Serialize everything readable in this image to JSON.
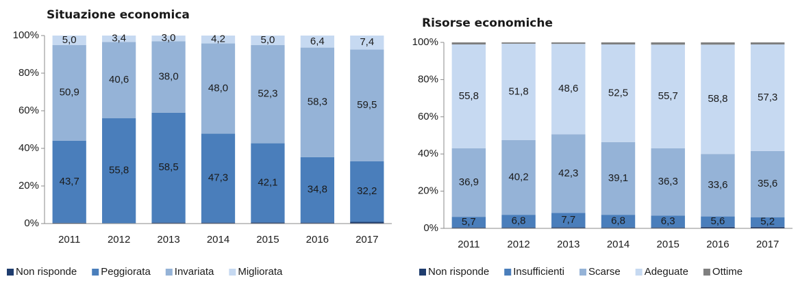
{
  "chart_data": [
    {
      "type": "stacked_bar",
      "title": "Situazione economica",
      "categories": [
        "2011",
        "2012",
        "2013",
        "2014",
        "2015",
        "2016",
        "2017"
      ],
      "series": [
        {
          "name": "Non risponde",
          "color": "#1f3d6e",
          "values": [
            0.4,
            0.2,
            0.5,
            0.5,
            0.6,
            0.5,
            0.9
          ]
        },
        {
          "name": "Peggiorata",
          "color": "#4a7ebb",
          "values": [
            43.7,
            55.8,
            58.5,
            47.3,
            42.1,
            34.8,
            32.2
          ],
          "value_labels": [
            "43,7",
            "55,8",
            "58,5",
            "47,3",
            "42,1",
            "34,8",
            "32,2"
          ]
        },
        {
          "name": "Invariata",
          "color": "#95b3d7",
          "values": [
            50.9,
            40.6,
            38.0,
            48.0,
            52.3,
            58.3,
            59.5
          ],
          "value_labels": [
            "50,9",
            "40,6",
            "38,0",
            "48,0",
            "52,3",
            "58,3",
            "59,5"
          ]
        },
        {
          "name": "Migliorata",
          "color": "#c6d9f1",
          "values": [
            5.0,
            3.4,
            3.0,
            4.2,
            5.0,
            6.4,
            7.4
          ],
          "value_labels": [
            "5,0",
            "3,4",
            "3,0",
            "4,2",
            "5,0",
            "6,4",
            "7,4"
          ]
        }
      ],
      "ylim": [
        0,
        100
      ],
      "yticks": [
        {
          "value": 0,
          "label": "0%"
        },
        {
          "value": 20,
          "label": "20%"
        },
        {
          "value": 40,
          "label": "40%"
        },
        {
          "value": 60,
          "label": "60%"
        },
        {
          "value": 80,
          "label": "80%"
        },
        {
          "value": 100,
          "label": "100%"
        }
      ],
      "legend": "bottom"
    },
    {
      "type": "stacked_bar",
      "title": "Risorse economiche",
      "categories": [
        "2011",
        "2012",
        "2013",
        "2014",
        "2015",
        "2016",
        "2017"
      ],
      "series": [
        {
          "name": "Non risponde",
          "color": "#1f3d6e",
          "values": [
            0.5,
            0.5,
            0.6,
            0.5,
            0.5,
            0.8,
            0.8
          ]
        },
        {
          "name": "Insufficienti",
          "color": "#4a7ebb",
          "values": [
            5.7,
            6.8,
            7.7,
            6.8,
            6.3,
            5.6,
            5.2
          ],
          "value_labels": [
            "5,7",
            "6,8",
            "7,7",
            "6,8",
            "6,3",
            "5,6",
            "5,2"
          ]
        },
        {
          "name": "Scarse",
          "color": "#95b3d7",
          "values": [
            36.9,
            40.2,
            42.3,
            39.1,
            36.3,
            33.6,
            35.6
          ],
          "value_labels": [
            "36,9",
            "40,2",
            "42,3",
            "39,1",
            "36,3",
            "33,6",
            "35,6"
          ]
        },
        {
          "name": "Adeguate",
          "color": "#c6d9f1",
          "values": [
            55.8,
            51.8,
            48.6,
            52.5,
            55.7,
            58.8,
            57.3
          ],
          "value_labels": [
            "55,8",
            "51,8",
            "48,6",
            "52,5",
            "55,7",
            "58,8",
            "57,3"
          ]
        },
        {
          "name": "Ottime",
          "color": "#7f7f7f",
          "values": [
            1.1,
            0.7,
            0.8,
            1.1,
            1.2,
            1.2,
            1.1
          ]
        }
      ],
      "ylim": [
        0,
        100
      ],
      "yticks": [
        {
          "value": 0,
          "label": "0%"
        },
        {
          "value": 20,
          "label": "20%"
        },
        {
          "value": 40,
          "label": "40%"
        },
        {
          "value": 60,
          "label": "60%"
        },
        {
          "value": 80,
          "label": "80%"
        },
        {
          "value": 100,
          "label": "100%"
        }
      ],
      "legend": "bottom"
    }
  ]
}
